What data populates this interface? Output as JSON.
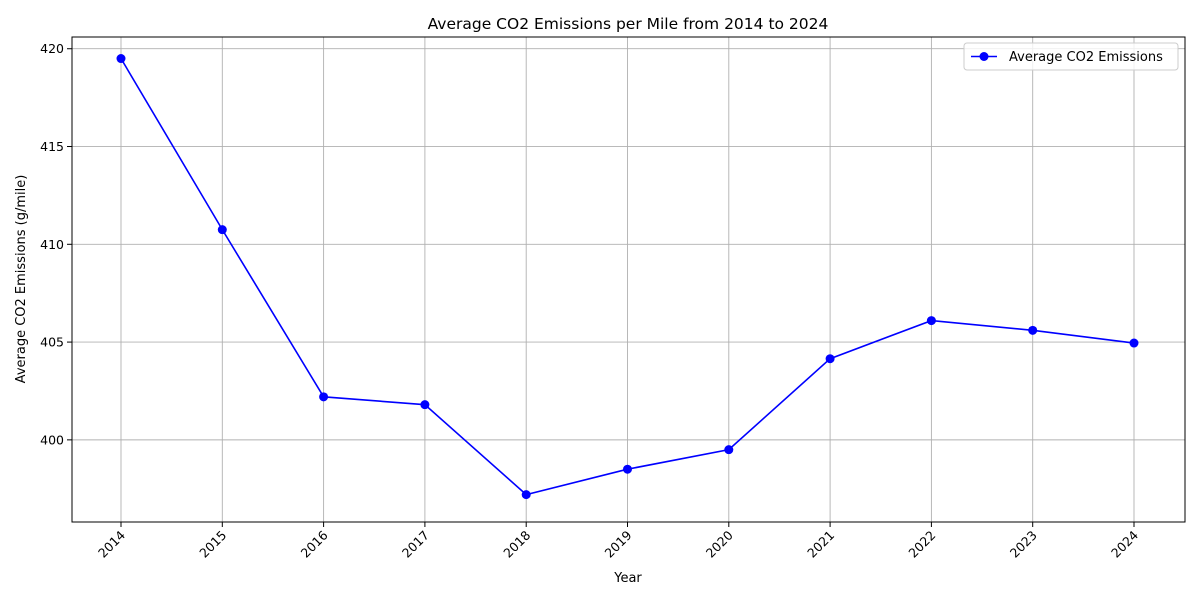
{
  "chart_data": {
    "type": "line",
    "title": "Average CO2 Emissions per Mile from 2014 to 2024",
    "xlabel": "Year",
    "ylabel": "Average CO2 Emissions (g/mile)",
    "x": [
      "2014",
      "2015",
      "2016",
      "2017",
      "2018",
      "2019",
      "2020",
      "2021",
      "2022",
      "2023",
      "2024"
    ],
    "series": [
      {
        "name": "Average CO2 Emissions",
        "color": "#0000ff",
        "marker": "circle",
        "values": [
          419.5,
          410.75,
          402.2,
          401.8,
          397.2,
          398.5,
          399.5,
          404.15,
          406.1,
          405.6,
          404.95
        ]
      }
    ],
    "ylim": [
      395.8,
      420.6
    ],
    "yticks": [
      400,
      405,
      410,
      415,
      420
    ],
    "ytick_labels": [
      "400",
      "405",
      "410",
      "415",
      "420"
    ],
    "xtick_rotation": 45,
    "grid": true,
    "legend_position": "upper right"
  }
}
